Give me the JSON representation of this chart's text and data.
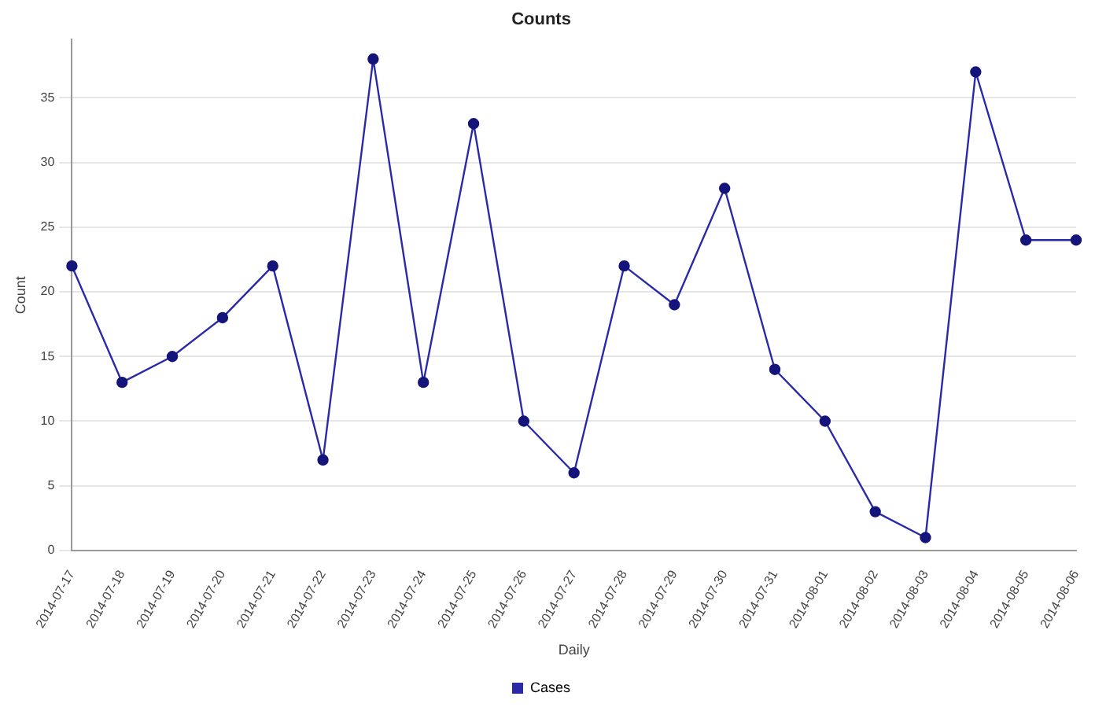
{
  "chart_data": {
    "type": "line",
    "title": "Counts",
    "xlabel": "Daily",
    "ylabel": "Count",
    "categories": [
      "2014-07-17",
      "2014-07-18",
      "2014-07-19",
      "2014-07-20",
      "2014-07-21",
      "2014-07-22",
      "2014-07-23",
      "2014-07-24",
      "2014-07-25",
      "2014-07-26",
      "2014-07-27",
      "2014-07-28",
      "2014-07-29",
      "2014-07-30",
      "2014-07-31",
      "2014-08-01",
      "2014-08-02",
      "2014-08-03",
      "2014-08-04",
      "2014-08-05",
      "2014-08-06"
    ],
    "series": [
      {
        "name": "Cases",
        "color": "#2a2aa8",
        "values": [
          22,
          13,
          15,
          18,
          22,
          7,
          38,
          13,
          33,
          10,
          6,
          22,
          19,
          28,
          14,
          10,
          3,
          1,
          37,
          24,
          24
        ]
      }
    ],
    "ylim": [
      0,
      39.5
    ],
    "yticks": [
      0,
      5,
      10,
      15,
      20,
      25,
      30,
      35
    ],
    "grid": "y",
    "legend": "bottom",
    "marker": "circle",
    "line_style": "solid"
  }
}
